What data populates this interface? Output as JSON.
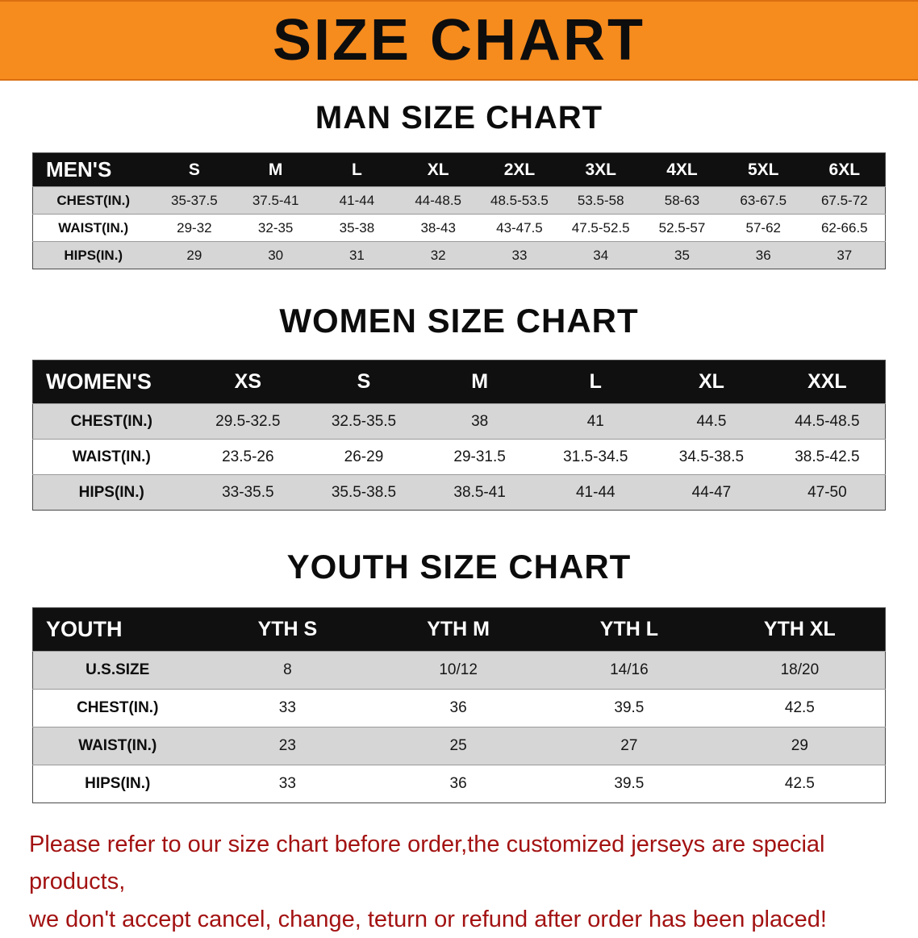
{
  "banner": {
    "title": "SIZE CHART",
    "bg_color": "#f68b1e",
    "text_color": "#0d0d0d"
  },
  "colors": {
    "table_header_bg": "#101010",
    "row_gray": "#d6d6d6",
    "disclaimer_red": "#a31212"
  },
  "men": {
    "heading": "MAN SIZE CHART",
    "corner_label": "MEN'S",
    "sizes": [
      "S",
      "M",
      "L",
      "XL",
      "2XL",
      "3XL",
      "4XL",
      "5XL",
      "6XL"
    ],
    "rows": [
      {
        "label": "CHEST(IN.)",
        "values": [
          "35-37.5",
          "37.5-41",
          "41-44",
          "44-48.5",
          "48.5-53.5",
          "53.5-58",
          "58-63",
          "63-67.5",
          "67.5-72"
        ]
      },
      {
        "label": "WAIST(IN.)",
        "values": [
          "29-32",
          "32-35",
          "35-38",
          "38-43",
          "43-47.5",
          "47.5-52.5",
          "52.5-57",
          "57-62",
          "62-66.5"
        ]
      },
      {
        "label": "HIPS(IN.)",
        "values": [
          "29",
          "30",
          "31",
          "32",
          "33",
          "34",
          "35",
          "36",
          "37"
        ]
      }
    ]
  },
  "women": {
    "heading": "WOMEN SIZE CHART",
    "corner_label": "WOMEN'S",
    "sizes": [
      "XS",
      "S",
      "M",
      "L",
      "XL",
      "XXL"
    ],
    "rows": [
      {
        "label": "CHEST(IN.)",
        "values": [
          "29.5-32.5",
          "32.5-35.5",
          "38",
          "41",
          "44.5",
          "44.5-48.5"
        ]
      },
      {
        "label": "WAIST(IN.)",
        "values": [
          "23.5-26",
          "26-29",
          "29-31.5",
          "31.5-34.5",
          "34.5-38.5",
          "38.5-42.5"
        ]
      },
      {
        "label": "HIPS(IN.)",
        "values": [
          "33-35.5",
          "35.5-38.5",
          "38.5-41",
          "41-44",
          "44-47",
          "47-50"
        ]
      }
    ]
  },
  "youth": {
    "heading": "YOUTH SIZE CHART",
    "corner_label": "YOUTH",
    "sizes": [
      "YTH S",
      "YTH M",
      "YTH L",
      "YTH XL"
    ],
    "rows": [
      {
        "label": "U.S.SIZE",
        "values": [
          "8",
          "10/12",
          "14/16",
          "18/20"
        ]
      },
      {
        "label": "CHEST(IN.)",
        "values": [
          "33",
          "36",
          "39.5",
          "42.5"
        ]
      },
      {
        "label": "WAIST(IN.)",
        "values": [
          "23",
          "25",
          "27",
          "29"
        ]
      },
      {
        "label": "HIPS(IN.)",
        "values": [
          "33",
          "36",
          "39.5",
          "42.5"
        ]
      }
    ]
  },
  "disclaimer": {
    "line1": "Please refer to our size chart before order,the customized jerseys are special products,",
    "line2": "we don't accept cancel, change, teturn or refund after order has been placed!"
  }
}
